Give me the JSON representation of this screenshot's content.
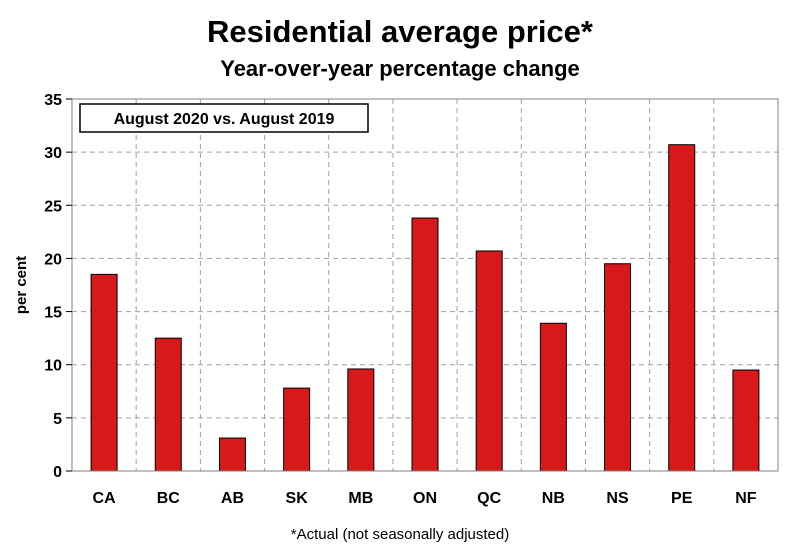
{
  "chart_data": {
    "type": "bar",
    "title": "Residential average price*",
    "subtitle": "Year-over-year percentage change",
    "legend_label": "August 2020 vs. August 2019",
    "ylabel": "per cent",
    "xlabel": "",
    "ylim": [
      0,
      35
    ],
    "yticks": [
      0,
      5,
      10,
      15,
      20,
      25,
      30,
      35
    ],
    "categories": [
      "CA",
      "BC",
      "AB",
      "SK",
      "MB",
      "ON",
      "QC",
      "NB",
      "NS",
      "PE",
      "NF"
    ],
    "values": [
      18.5,
      12.5,
      3.1,
      7.8,
      9.6,
      23.8,
      20.7,
      13.9,
      19.5,
      30.7,
      9.5
    ],
    "grid": true,
    "bar_color": "#d7191c",
    "footnote": "*Actual (not seasonally adjusted)"
  }
}
